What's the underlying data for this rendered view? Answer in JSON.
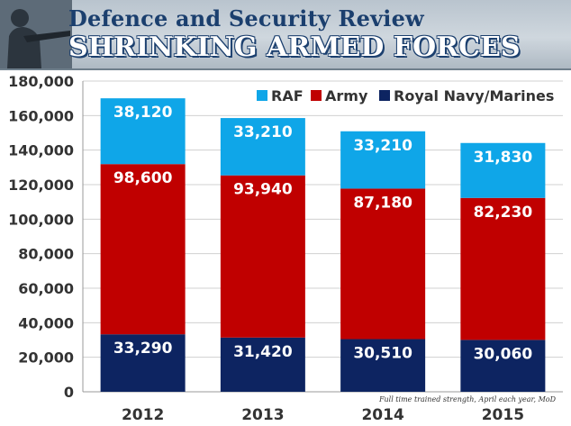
{
  "header": {
    "title": "Defence and Security Review",
    "headline": "SHRINKING ARMED FORCES"
  },
  "source_note": "Full time trained strength, April each year, MoD",
  "chart_data": {
    "type": "bar",
    "stacked": true,
    "categories": [
      "2012",
      "2013",
      "2014",
      "2015"
    ],
    "series": [
      {
        "name": "Royal Navy/Marines",
        "color": "#0d2461",
        "values": [
          33290,
          31420,
          30510,
          30060
        ],
        "labels": [
          "33,290",
          "31,420",
          "30,510",
          "30,060"
        ]
      },
      {
        "name": "Army",
        "color": "#c00000",
        "values": [
          98600,
          93940,
          87180,
          82230
        ],
        "labels": [
          "98,600",
          "93,940",
          "87,180",
          "82,230"
        ]
      },
      {
        "name": "RAF",
        "color": "#0fa6e8",
        "values": [
          38120,
          33210,
          33210,
          31830
        ],
        "labels": [
          "38,120",
          "33,210",
          "33,210",
          "31,830"
        ]
      }
    ],
    "legend_order": [
      "RAF",
      "Army",
      "Royal Navy/Marines"
    ],
    "legend_position": "top-right",
    "ylim": [
      0,
      180000
    ],
    "yticks": [
      0,
      20000,
      40000,
      60000,
      80000,
      100000,
      120000,
      140000,
      160000,
      180000
    ],
    "ytick_labels": [
      "0",
      "20,000",
      "40,000",
      "60,000",
      "80,000",
      "100,000",
      "120,000",
      "140,000",
      "160,000",
      "180,000"
    ],
    "grid": true,
    "xlabel": "",
    "ylabel": ""
  }
}
